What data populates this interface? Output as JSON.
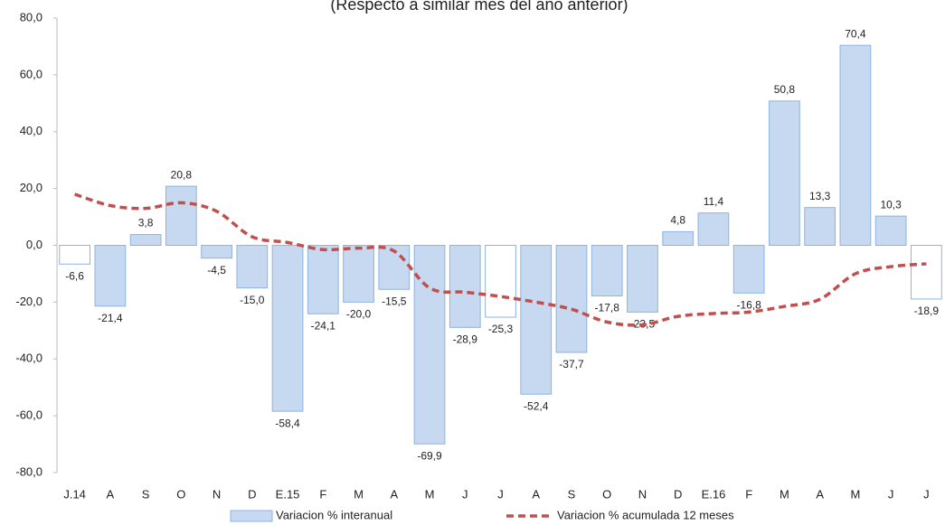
{
  "chart_data": {
    "type": "bar",
    "subtitle": "(Respecto a similar mes del año anterior)",
    "categories": [
      "J.14",
      "A",
      "S",
      "O",
      "N",
      "D",
      "E.15",
      "F",
      "M",
      "A",
      "M",
      "J",
      "J",
      "A",
      "S",
      "O",
      "N",
      "D",
      "E.16",
      "F",
      "M",
      "A",
      "M",
      "J",
      "J"
    ],
    "series": [
      {
        "name": "Variacion % interanual",
        "type": "bar",
        "color": "#c6d9f1",
        "edgecolor": "#8db3e2",
        "colors": [
          "#ffffff",
          "#c6d9f1",
          "#c6d9f1",
          "#c6d9f1",
          "#c6d9f1",
          "#c6d9f1",
          "#c6d9f1",
          "#c6d9f1",
          "#c6d9f1",
          "#c6d9f1",
          "#c6d9f1",
          "#c6d9f1",
          "#ffffff",
          "#c6d9f1",
          "#c6d9f1",
          "#c6d9f1",
          "#c6d9f1",
          "#c6d9f1",
          "#c6d9f1",
          "#c6d9f1",
          "#c6d9f1",
          "#c6d9f1",
          "#c6d9f1",
          "#c6d9f1",
          "#ffffff"
        ],
        "values": [
          -6.6,
          -21.4,
          3.8,
          20.8,
          -4.5,
          -15.0,
          -58.4,
          -24.1,
          -20.0,
          -15.5,
          -69.9,
          -28.9,
          -25.3,
          -52.4,
          -37.7,
          -17.8,
          -23.5,
          4.8,
          11.4,
          -16.8,
          50.8,
          13.3,
          70.4,
          10.3,
          -18.9
        ],
        "value_labels": [
          "-6,6",
          "-21,4",
          "3,8",
          "20,8",
          "-4,5",
          "-15,0",
          "-58,4",
          "-24,1",
          "-20,0",
          "-15,5",
          "-69,9",
          "-28,9",
          "-25,3",
          "-52,4",
          "-37,7",
          "-17,8",
          "-23,5",
          "4,8",
          "11,4",
          "-16,8",
          "50,8",
          "13,3",
          "70,4",
          "10,3",
          "-18,9"
        ]
      },
      {
        "name": "Variacion % acumulada 12 meses",
        "type": "line",
        "color": "#c0504d",
        "dashed": true,
        "values": [
          18,
          14,
          13,
          15,
          12,
          3,
          1,
          -1.5,
          -1,
          -2,
          -15,
          -16.5,
          -18,
          -20,
          -22.5,
          -27,
          -28,
          -25,
          -24,
          -23.5,
          -21.5,
          -19,
          -10,
          -7.5,
          -6.5
        ]
      }
    ],
    "ylim": [
      -80,
      80
    ],
    "yticks": [
      {
        "value": -80,
        "label": "-80,0"
      },
      {
        "value": -60,
        "label": "-60,0"
      },
      {
        "value": -40,
        "label": "-40,0"
      },
      {
        "value": -20,
        "label": "-20,0"
      },
      {
        "value": 0,
        "label": "0,0"
      },
      {
        "value": 20,
        "label": "20,0"
      },
      {
        "value": 40,
        "label": "40,0"
      },
      {
        "value": 60,
        "label": "60,0"
      },
      {
        "value": 80,
        "label": "80,0"
      }
    ],
    "legend": "bottom"
  }
}
